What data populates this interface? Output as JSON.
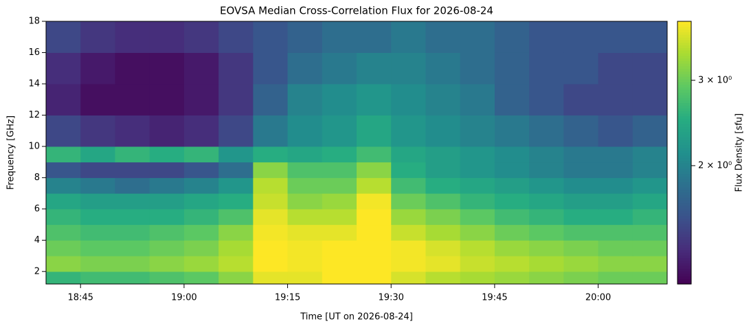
{
  "chart_data": {
    "type": "heatmap",
    "title": "EOVSA Median Cross-Correlation Flux for 2026-08-24",
    "x_label": "Time [UT on 2026-08-24]",
    "y_label": "Frequency [GHz]",
    "colorbar_label": "Flux Density [sfu]",
    "colormap": "viridis",
    "colorbar_scale": "log",
    "clim": [
      1.14,
      3.97
    ],
    "colorbar_ticks": [
      {
        "value": 2,
        "label": "2 × 10⁰"
      },
      {
        "value": 3,
        "label": "3 × 10⁰"
      }
    ],
    "xlim": [
      "18:40",
      "20:10"
    ],
    "xticks": [
      "18:45",
      "19:00",
      "19:15",
      "19:30",
      "19:45",
      "20:00"
    ],
    "ylim": [
      1.2,
      18
    ],
    "yticks": [
      2,
      4,
      6,
      8,
      10,
      12,
      14,
      16,
      18
    ],
    "x": [
      "18:40",
      "18:45",
      "18:50",
      "18:55",
      "19:00",
      "19:05",
      "19:10",
      "19:15",
      "19:20",
      "19:25",
      "19:30",
      "19:35",
      "19:40",
      "19:45",
      "19:50",
      "19:55",
      "20:00",
      "20:05",
      "20:10"
    ],
    "y": [
      1.2,
      2,
      3,
      4,
      5,
      6,
      7,
      8,
      9,
      10,
      12,
      14,
      16,
      18
    ],
    "values": [
      [
        2.6,
        2.7,
        2.7,
        2.8,
        2.9,
        3.2,
        3.8,
        3.8,
        3.97,
        3.97,
        3.7,
        3.5,
        3.4,
        3.3,
        3.2,
        3.1,
        3.0,
        3.0
      ],
      [
        3.2,
        3.1,
        3.1,
        3.2,
        3.3,
        3.5,
        3.97,
        3.9,
        3.97,
        3.97,
        3.9,
        3.8,
        3.6,
        3.5,
        3.4,
        3.3,
        3.2,
        3.2
      ],
      [
        3.0,
        2.9,
        2.9,
        3.0,
        3.1,
        3.4,
        3.97,
        3.9,
        3.97,
        3.97,
        3.9,
        3.7,
        3.5,
        3.3,
        3.2,
        3.1,
        3.0,
        3.0
      ],
      [
        2.8,
        2.7,
        2.7,
        2.8,
        2.9,
        3.2,
        3.9,
        3.8,
        3.8,
        3.97,
        3.6,
        3.4,
        3.2,
        3.0,
        2.9,
        2.8,
        2.8,
        2.8
      ],
      [
        2.6,
        2.5,
        2.5,
        2.5,
        2.6,
        2.8,
        3.8,
        3.5,
        3.5,
        3.97,
        3.3,
        3.1,
        2.9,
        2.7,
        2.6,
        2.5,
        2.5,
        2.6
      ],
      [
        2.4,
        2.3,
        2.3,
        2.3,
        2.4,
        2.5,
        3.6,
        3.2,
        3.3,
        3.9,
        3.0,
        2.8,
        2.6,
        2.5,
        2.4,
        2.3,
        2.3,
        2.4
      ],
      [
        2.0,
        1.9,
        1.8,
        1.9,
        2.0,
        2.2,
        3.5,
        3.0,
        3.0,
        3.5,
        2.7,
        2.5,
        2.4,
        2.3,
        2.2,
        2.1,
        2.1,
        2.2
      ],
      [
        1.6,
        1.5,
        1.5,
        1.5,
        1.6,
        1.8,
        3.2,
        2.8,
        2.8,
        3.2,
        2.5,
        2.3,
        2.2,
        2.1,
        2.0,
        1.9,
        1.9,
        2.0
      ],
      [
        2.6,
        2.4,
        2.6,
        2.5,
        2.6,
        2.2,
        2.5,
        2.4,
        2.5,
        2.7,
        2.4,
        2.3,
        2.2,
        2.1,
        2.0,
        1.9,
        1.9,
        2.0
      ],
      [
        1.5,
        1.4,
        1.35,
        1.3,
        1.35,
        1.5,
        1.9,
        2.1,
        2.2,
        2.4,
        2.2,
        2.1,
        2.0,
        1.9,
        1.8,
        1.7,
        1.6,
        1.7
      ],
      [
        1.3,
        1.2,
        1.2,
        1.2,
        1.25,
        1.4,
        1.7,
        2.0,
        2.1,
        2.2,
        2.1,
        2.0,
        1.9,
        1.7,
        1.6,
        1.5,
        1.5,
        1.5
      ],
      [
        1.35,
        1.25,
        1.2,
        1.2,
        1.25,
        1.4,
        1.6,
        1.8,
        1.9,
        2.0,
        2.0,
        1.9,
        1.8,
        1.7,
        1.6,
        1.6,
        1.5,
        1.5
      ],
      [
        1.5,
        1.4,
        1.35,
        1.35,
        1.4,
        1.5,
        1.6,
        1.7,
        1.8,
        1.8,
        1.9,
        1.8,
        1.8,
        1.7,
        1.6,
        1.6,
        1.6,
        1.6
      ]
    ]
  }
}
